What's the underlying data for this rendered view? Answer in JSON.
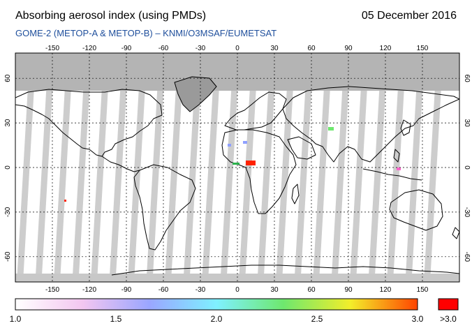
{
  "header": {
    "title": "Absorbing aerosol index (using PMDs)",
    "date": "05 December 2016",
    "subtitle": "GOME-2 (METOP-A & METOP-B)  –  KNMI/O3MSAF/EUMETSAT"
  },
  "map": {
    "projection": "equirectangular",
    "lon_ticks": [
      "-150",
      "-120",
      "-90",
      "-60",
      "-30",
      "0",
      "30",
      "60",
      "90",
      "120",
      "150"
    ],
    "lat_ticks": [
      "60",
      "30",
      "0",
      "-30",
      "-60"
    ],
    "no_data_color": "#c8c8c8",
    "polar_mask_color": "#b4b4b4"
  },
  "colorbar": {
    "tick_labels": [
      "1.0",
      "1.5",
      "2.0",
      "2.5",
      "3.0"
    ],
    "overflow_label": ">3.0",
    "overflow_color": "#ff0000",
    "stops": [
      "#ffffff",
      "#f3c6f0",
      "#9aa6ff",
      "#7ff0ff",
      "#6ee86e",
      "#f3ee2a",
      "#ff4400"
    ]
  }
}
